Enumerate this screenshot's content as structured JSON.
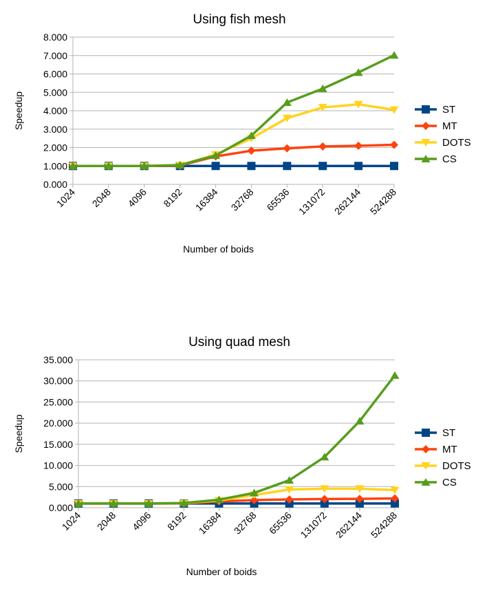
{
  "chart_data": [
    {
      "type": "line",
      "title": "Using fish mesh",
      "xlabel": "Number of boids",
      "ylabel": "Speedup",
      "categories": [
        "1024",
        "2048",
        "4096",
        "8192",
        "16384",
        "32768",
        "65536",
        "131072",
        "262144",
        "524288"
      ],
      "ylim": [
        0,
        8
      ],
      "yticks": [
        "0.000",
        "1.000",
        "2.000",
        "3.000",
        "4.000",
        "5.000",
        "6.000",
        "7.000",
        "8.000"
      ],
      "grid": true,
      "legend": "right",
      "series": [
        {
          "name": "ST",
          "color": "#004586",
          "marker": "square",
          "values": [
            1.0,
            1.0,
            1.0,
            1.0,
            1.0,
            1.0,
            1.0,
            1.0,
            1.0,
            1.0
          ]
        },
        {
          "name": "MT",
          "color": "#ff420e",
          "marker": "diamond",
          "values": [
            1.0,
            1.0,
            1.0,
            1.02,
            1.52,
            1.83,
            1.96,
            2.06,
            2.1,
            2.15
          ]
        },
        {
          "name": "DOTS",
          "color": "#ffd320",
          "marker": "triangle-down",
          "values": [
            1.0,
            1.0,
            1.0,
            1.04,
            1.62,
            2.5,
            3.6,
            4.18,
            4.35,
            4.05
          ]
        },
        {
          "name": "CS",
          "color": "#579d1c",
          "marker": "triangle-up",
          "values": [
            1.0,
            1.0,
            1.0,
            1.05,
            1.57,
            2.65,
            4.45,
            5.2,
            6.08,
            7.02
          ]
        }
      ]
    },
    {
      "type": "line",
      "title": "Using quad mesh",
      "xlabel": "Number of boids",
      "ylabel": "Speedup",
      "categories": [
        "1024",
        "2048",
        "4096",
        "8192",
        "16384",
        "32768",
        "65536",
        "131072",
        "262144",
        "524288"
      ],
      "ylim": [
        0,
        35
      ],
      "yticks": [
        "0.000",
        "5.000",
        "10.000",
        "15.000",
        "20.000",
        "25.000",
        "30.000",
        "35.000"
      ],
      "grid": true,
      "legend": "right",
      "series": [
        {
          "name": "ST",
          "color": "#004586",
          "marker": "square",
          "values": [
            1.0,
            1.0,
            1.0,
            1.0,
            1.0,
            1.0,
            1.0,
            1.0,
            1.0,
            1.0
          ]
        },
        {
          "name": "MT",
          "color": "#ff420e",
          "marker": "diamond",
          "values": [
            1.0,
            1.0,
            1.0,
            1.02,
            1.5,
            1.8,
            1.95,
            2.05,
            2.1,
            2.2
          ]
        },
        {
          "name": "DOTS",
          "color": "#ffd320",
          "marker": "triangle-down",
          "values": [
            1.0,
            1.0,
            1.0,
            1.05,
            1.7,
            3.0,
            4.3,
            4.5,
            4.5,
            4.15
          ]
        },
        {
          "name": "CS",
          "color": "#579d1c",
          "marker": "triangle-up",
          "values": [
            1.0,
            1.0,
            1.0,
            1.1,
            1.9,
            3.5,
            6.5,
            12.0,
            20.5,
            31.3
          ]
        }
      ]
    }
  ]
}
